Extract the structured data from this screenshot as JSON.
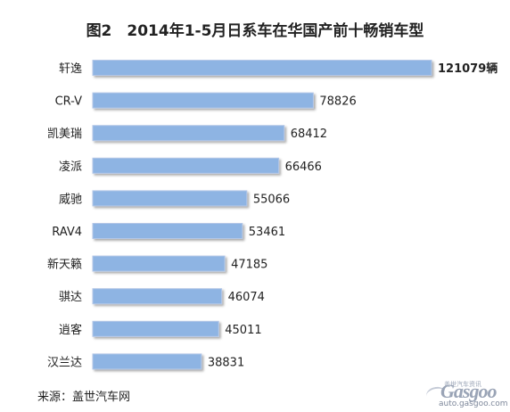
{
  "title": "图2　2014年1-5月日系车在华国产前十畅销车型",
  "source": "来源：盖世汽车网",
  "watermark": {
    "brand": "Gasgoo",
    "tagline": "盖世汽车资讯",
    "url": "auto.gasgoo.com"
  },
  "chart_data": {
    "type": "bar",
    "orientation": "horizontal",
    "title": "图2　2014年1-5月日系车在华国产前十畅销车型",
    "categories": [
      "轩逸",
      "CR-V",
      "凯美瑞",
      "凌派",
      "威驰",
      "RAV4",
      "新天籁",
      "骐达",
      "逍客",
      "汉兰达"
    ],
    "values": [
      121079,
      78826,
      68412,
      66466,
      55066,
      53461,
      47185,
      46074,
      45011,
      38831
    ],
    "data_labels": [
      "121079辆",
      "78826",
      "68412",
      "66466",
      "55066",
      "53461",
      "47185",
      "46074",
      "45011",
      "38831"
    ],
    "xlim": [
      0,
      121079
    ],
    "grid": false,
    "legend": "none",
    "bar_color": "#8eb4e3",
    "bar_edge_color": "#b4c7e7"
  }
}
